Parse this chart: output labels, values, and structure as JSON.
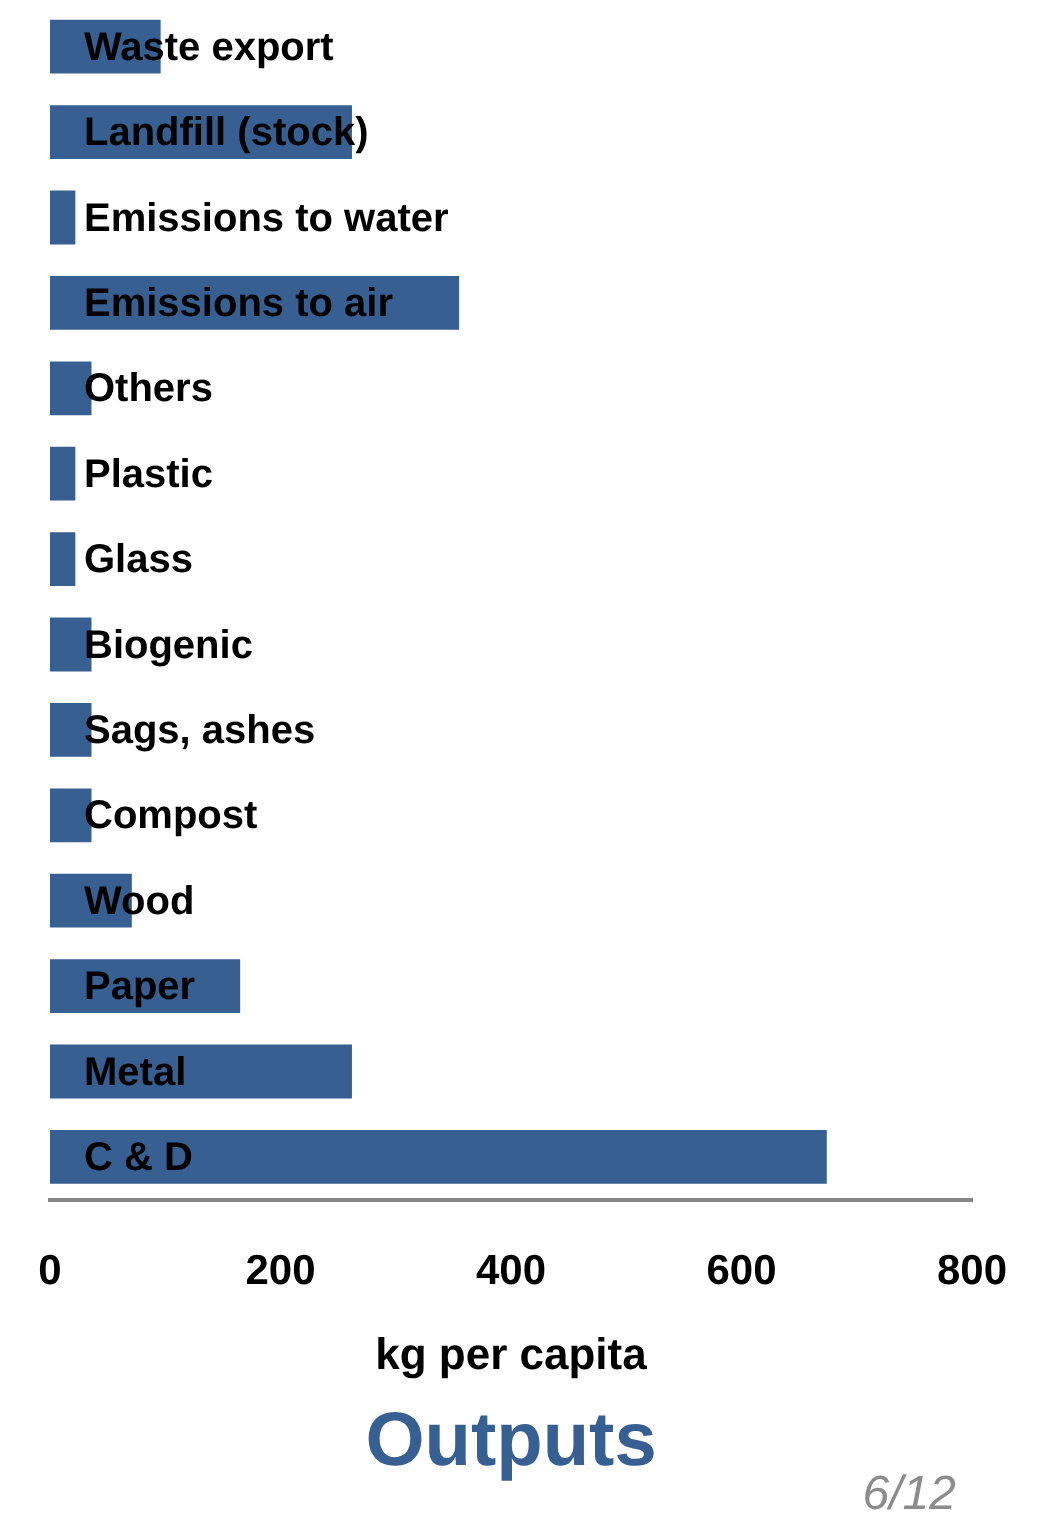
{
  "chart_data": {
    "type": "bar",
    "orientation": "horizontal",
    "title": "Outputs",
    "xlabel": "kg per capita",
    "categories": [
      "Waste export",
      "Landfill (stock)",
      "Emissions to water",
      "Emissions to air",
      "Others",
      "Plastic",
      "Glass",
      "Biogenic",
      "Sags, ashes",
      "Compost",
      "Wood",
      "Paper",
      "Metal",
      "C & D"
    ],
    "values": [
      96,
      262,
      22,
      355,
      36,
      22,
      22,
      36,
      36,
      36,
      71,
      165,
      262,
      674
    ],
    "color": "#375f92",
    "xlim": [
      0,
      800
    ],
    "xticks": [
      0,
      200,
      400,
      600,
      800
    ],
    "grid": false,
    "legend": false,
    "annotations": [
      "6/12"
    ]
  }
}
